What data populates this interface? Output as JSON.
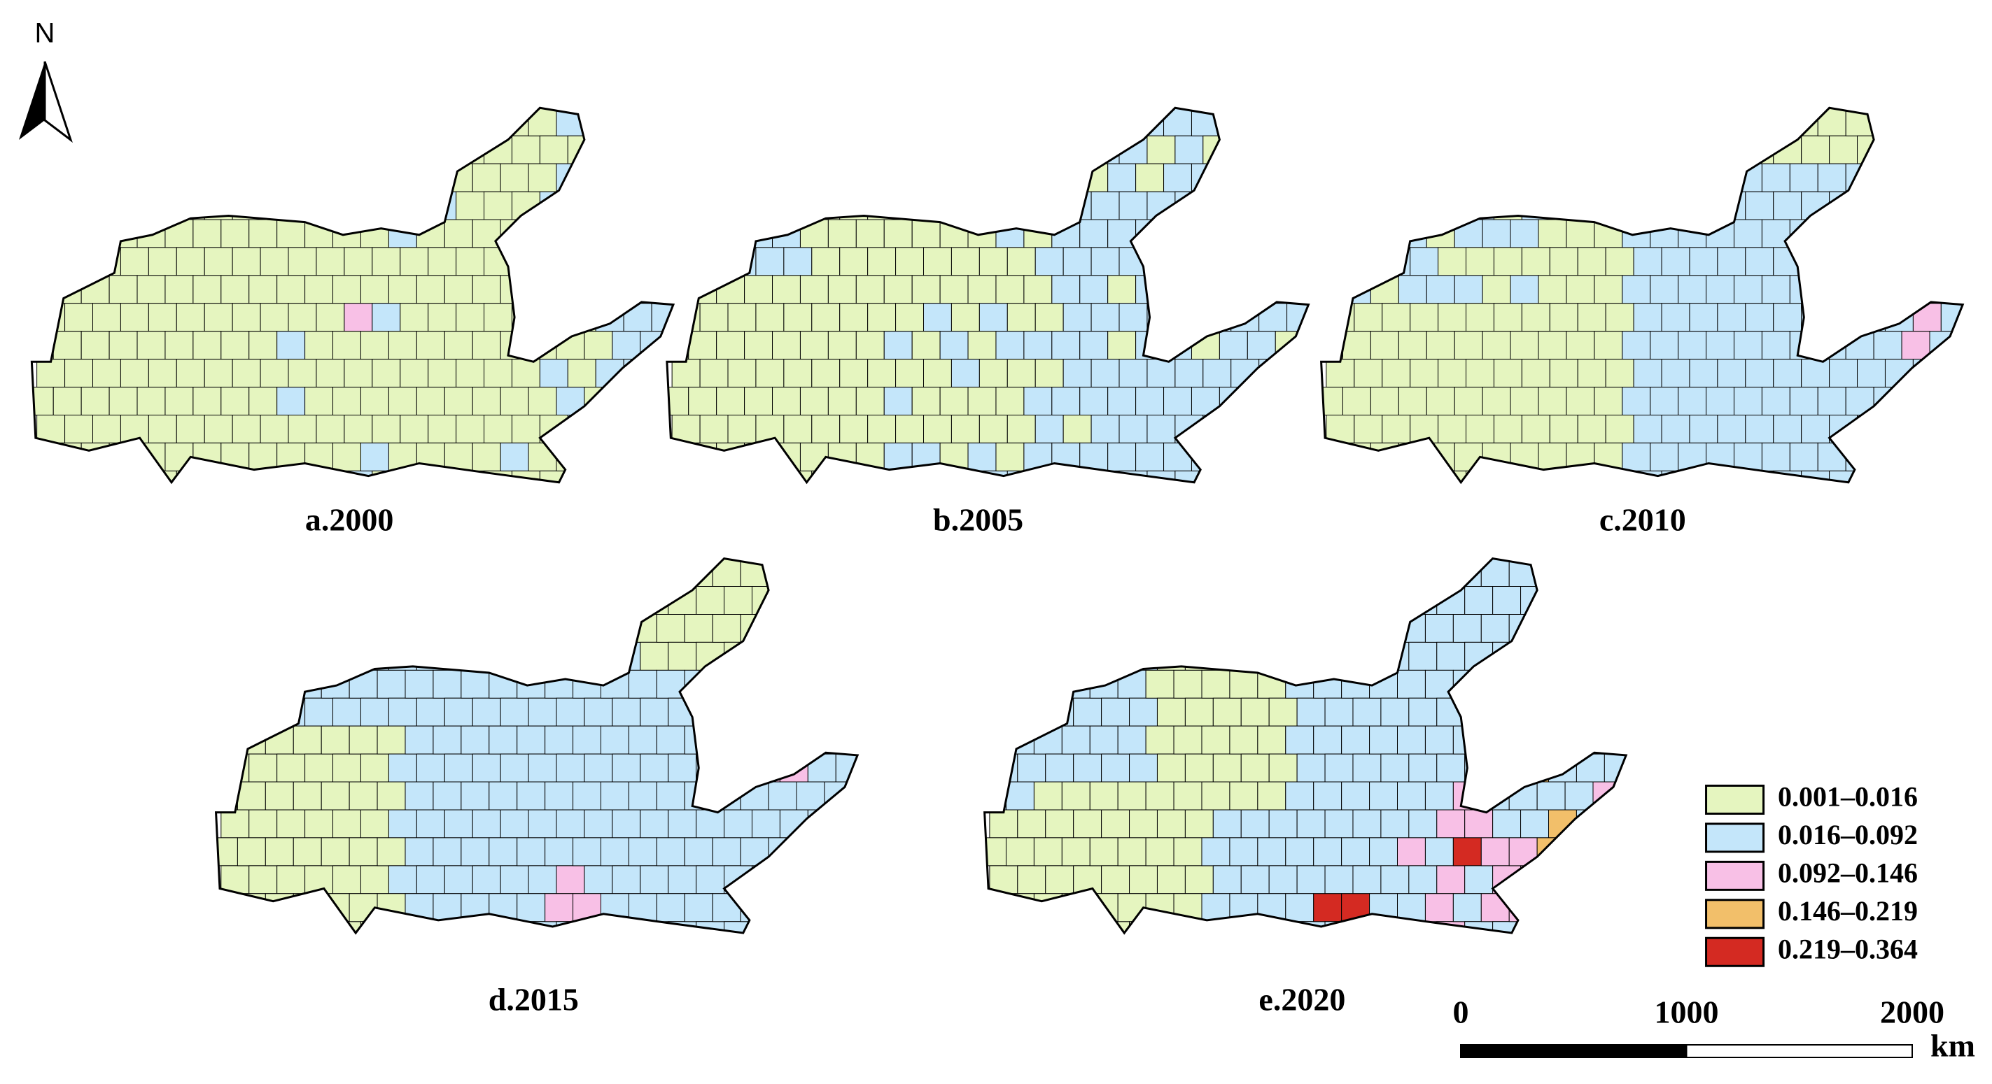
{
  "north": "N",
  "panels": [
    {
      "label": "a.2000"
    },
    {
      "label": "b.2005"
    },
    {
      "label": "c.2010"
    },
    {
      "label": "d.2015"
    },
    {
      "label": "e.2020"
    }
  ],
  "legend": [
    {
      "label": "0.001–0.016",
      "color": "#e5f5bf"
    },
    {
      "label": "0.016–0.092",
      "color": "#c4e6fa"
    },
    {
      "label": "0.092–0.146",
      "color": "#f8c0e6"
    },
    {
      "label": "0.146–0.219",
      "color": "#f2bf6a"
    },
    {
      "label": "0.219–0.364",
      "color": "#d42a22"
    }
  ],
  "scale_bar": {
    "ticks": [
      0,
      1000,
      2000
    ],
    "unit": "km"
  }
}
